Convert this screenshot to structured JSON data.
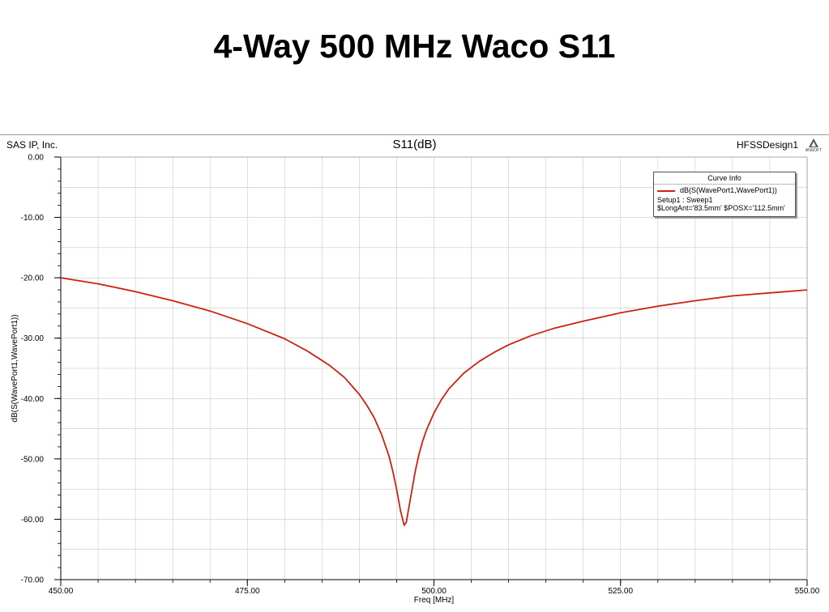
{
  "slide": {
    "title": "4-Way 500 MHz Waco S11"
  },
  "plot_header": {
    "company": "SAS IP, Inc.",
    "plot_title": "S11(dB)",
    "design_name": "HFSSDesign1",
    "logo_text": "ANSOFT"
  },
  "legend": {
    "title": "Curve Info",
    "trace_name": "dB(S(WavePort1,WavePort1))",
    "setup_line": "Setup1 : Sweep1",
    "params_line": "$LongAnt='83.5mm' $POSX='112.5mm'"
  },
  "colors": {
    "trace": "#cc2211",
    "grid": "#c8c8c8",
    "axis": "#000000"
  },
  "chart_data": {
    "type": "line",
    "title": "S11(dB)",
    "xlabel": "Freq [MHz]",
    "ylabel": "dB(S(WavePort1,WavePort1))",
    "xlim": [
      450,
      550
    ],
    "ylim": [
      -70,
      0
    ],
    "x_ticks": [
      450,
      475,
      500,
      525,
      550
    ],
    "x_tick_labels": [
      "450.00",
      "475.00",
      "500.00",
      "525.00",
      "550.00"
    ],
    "y_ticks": [
      0,
      -10,
      -20,
      -30,
      -40,
      -50,
      -60,
      -70
    ],
    "y_tick_labels": [
      "0.00",
      "-10.00",
      "-20.00",
      "-30.00",
      "-40.00",
      "-50.00",
      "-60.00",
      "-70.00"
    ],
    "grid": true,
    "legend_position": "top-right",
    "series": [
      {
        "name": "dB(S(WavePort1,WavePort1))",
        "x": [
          450,
          455,
          460,
          465,
          470,
          475,
          480,
          483,
          486,
          488,
          490,
          491,
          492,
          493,
          494,
          494.5,
          495,
          495.5,
          496,
          496.3,
          496.5,
          497,
          497.5,
          498,
          498.5,
          499,
          500,
          501,
          502,
          504,
          506,
          508,
          510,
          513,
          516,
          520,
          525,
          530,
          535,
          540,
          545,
          550
        ],
        "y": [
          -20.0,
          -21.0,
          -22.3,
          -23.8,
          -25.5,
          -27.6,
          -30.1,
          -32.1,
          -34.5,
          -36.5,
          -39.3,
          -41.1,
          -43.2,
          -46.0,
          -49.6,
          -52.1,
          -55.0,
          -58.5,
          -61.0,
          -60.5,
          -59.0,
          -55.5,
          -52.0,
          -49.2,
          -47.0,
          -45.2,
          -42.4,
          -40.2,
          -38.4,
          -35.8,
          -33.9,
          -32.4,
          -31.1,
          -29.6,
          -28.4,
          -27.2,
          -25.8,
          -24.7,
          -23.8,
          -23.0,
          -22.5,
          -22.0
        ]
      }
    ]
  }
}
